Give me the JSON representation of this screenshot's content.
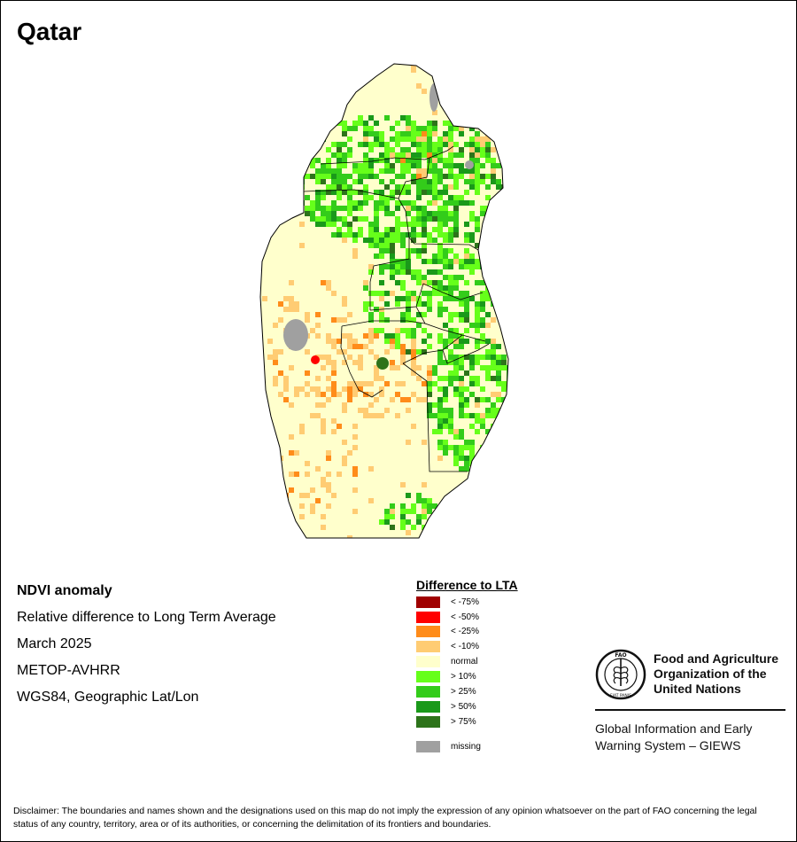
{
  "title": "Qatar",
  "info": {
    "product": "NDVI anomaly",
    "description": "Relative difference to Long Term Average",
    "period": "March 2025",
    "sensor": "METOP-AVHRR",
    "projection": "WGS84, Geographic Lat/Lon"
  },
  "legend": {
    "title": "Difference to LTA",
    "items": [
      {
        "label": "< -75%",
        "color": "#a00000"
      },
      {
        "label": "< -50%",
        "color": "#ff0000"
      },
      {
        "label": "< -25%",
        "color": "#ff8c1a"
      },
      {
        "label": "< -10%",
        "color": "#ffcc73"
      },
      {
        "label": "normal",
        "color": "#ffffcc"
      },
      {
        "label": "> 10%",
        "color": "#66ff1a"
      },
      {
        "label": "> 25%",
        "color": "#33cc1a"
      },
      {
        "label": "> 50%",
        "color": "#1a991a"
      },
      {
        "label": "> 75%",
        "color": "#2d731a"
      },
      {
        "label": "missing",
        "color": "#a0a0a0"
      }
    ]
  },
  "organization": {
    "name_lines": [
      "Food and Agriculture",
      "Organization of the",
      "United Nations"
    ],
    "logo_text": "FAO",
    "logo_motto": "FIAT PANIS",
    "system_lines": [
      "Global Information and Early",
      "Warning System – GIEWS"
    ]
  },
  "disclaimer": "Disclaimer: The boundaries and names shown and the designations used on this map do not imply the expression of any opinion whatsoever on the part of FAO concerning the legal status of any country, territory, area or of its authorities, or concerning the delimitation of its frontiers and boundaries.",
  "colors": {
    "background": "#ffffff",
    "normal": "#ffffcc",
    "border": "#000000"
  }
}
